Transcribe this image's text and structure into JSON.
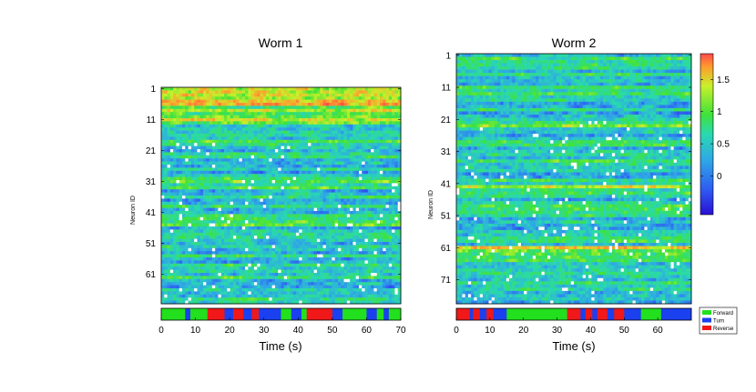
{
  "colors": {
    "forward": "#22e01e",
    "turn": "#1a40f0",
    "reverse": "#f01818",
    "colormap": [
      "#2a0fd6",
      "#2e5df2",
      "#2fa8e6",
      "#29d9b0",
      "#3fe23a",
      "#c9f02b",
      "#ff9a2e",
      "#ff4a4a"
    ]
  },
  "chart_data": [
    {
      "type": "heatmap",
      "title": "Worm 1",
      "xlabel": "Time (s)",
      "ylabel": "Neuron ID",
      "x_range": [
        0,
        70
      ],
      "x_ticks": [
        0,
        10,
        20,
        30,
        40,
        50,
        60,
        70
      ],
      "y_range": [
        1,
        70
      ],
      "y_ticks": [
        1,
        11,
        21,
        31,
        41,
        51,
        61
      ],
      "n_neurons": 70,
      "behavior_segments": [
        {
          "start": 0,
          "end": 7,
          "state": "Forward"
        },
        {
          "start": 7,
          "end": 8.5,
          "state": "Turn"
        },
        {
          "start": 8.5,
          "end": 13.5,
          "state": "Forward"
        },
        {
          "start": 13.5,
          "end": 18.5,
          "state": "Reverse"
        },
        {
          "start": 18.5,
          "end": 21,
          "state": "Turn"
        },
        {
          "start": 21,
          "end": 24,
          "state": "Reverse"
        },
        {
          "start": 24,
          "end": 26.5,
          "state": "Turn"
        },
        {
          "start": 26.5,
          "end": 28.5,
          "state": "Reverse"
        },
        {
          "start": 28.5,
          "end": 35,
          "state": "Turn"
        },
        {
          "start": 35,
          "end": 38,
          "state": "Forward"
        },
        {
          "start": 38,
          "end": 41,
          "state": "Turn"
        },
        {
          "start": 41,
          "end": 42.5,
          "state": "Forward"
        },
        {
          "start": 42.5,
          "end": 50,
          "state": "Reverse"
        },
        {
          "start": 50,
          "end": 53,
          "state": "Turn"
        },
        {
          "start": 53,
          "end": 60,
          "state": "Forward"
        },
        {
          "start": 60,
          "end": 63,
          "state": "Turn"
        },
        {
          "start": 63,
          "end": 65,
          "state": "Forward"
        },
        {
          "start": 65,
          "end": 66.5,
          "state": "Turn"
        },
        {
          "start": 66.5,
          "end": 70,
          "state": "Forward"
        }
      ]
    },
    {
      "type": "heatmap",
      "title": "Worm 2",
      "xlabel": "Time (s)",
      "ylabel": "Neuron ID",
      "x_range": [
        0,
        70
      ],
      "x_ticks": [
        0,
        10,
        20,
        30,
        40,
        50,
        60
      ],
      "y_range": [
        1,
        78
      ],
      "y_ticks": [
        1,
        11,
        21,
        31,
        41,
        51,
        61,
        71
      ],
      "n_neurons": 78,
      "behavior_segments": [
        {
          "start": 0,
          "end": 4,
          "state": "Reverse"
        },
        {
          "start": 4,
          "end": 5,
          "state": "Turn"
        },
        {
          "start": 5,
          "end": 7,
          "state": "Reverse"
        },
        {
          "start": 7,
          "end": 9,
          "state": "Turn"
        },
        {
          "start": 9,
          "end": 11,
          "state": "Reverse"
        },
        {
          "start": 11,
          "end": 15,
          "state": "Turn"
        },
        {
          "start": 15,
          "end": 33,
          "state": "Forward"
        },
        {
          "start": 33,
          "end": 37,
          "state": "Reverse"
        },
        {
          "start": 37,
          "end": 38.5,
          "state": "Turn"
        },
        {
          "start": 38.5,
          "end": 40.5,
          "state": "Reverse"
        },
        {
          "start": 40.5,
          "end": 42,
          "state": "Turn"
        },
        {
          "start": 42,
          "end": 45,
          "state": "Reverse"
        },
        {
          "start": 45,
          "end": 47,
          "state": "Turn"
        },
        {
          "start": 47,
          "end": 50,
          "state": "Reverse"
        },
        {
          "start": 50,
          "end": 55,
          "state": "Turn"
        },
        {
          "start": 55,
          "end": 61,
          "state": "Forward"
        },
        {
          "start": 61,
          "end": 70,
          "state": "Turn"
        }
      ]
    }
  ],
  "colorbar": {
    "range": [
      -0.6,
      1.9
    ],
    "ticks": [
      0,
      0.5,
      1,
      1.5
    ],
    "tick_labels": [
      "0",
      "0.5",
      "1",
      "1.5"
    ]
  },
  "behavior_legend": {
    "items": [
      {
        "label": "Forward",
        "color_key": "forward"
      },
      {
        "label": "Turn",
        "color_key": "turn"
      },
      {
        "label": "Reverse",
        "color_key": "reverse"
      }
    ]
  }
}
